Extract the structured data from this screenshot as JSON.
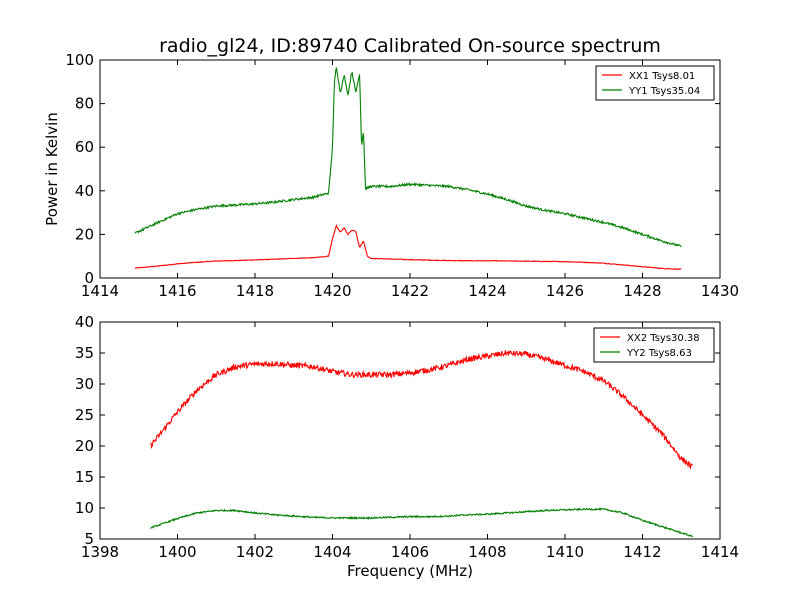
{
  "chart_data": [
    {
      "type": "line",
      "title": "radio_gl24, ID:89740 Calibrated On-source spectrum",
      "xlabel": "",
      "ylabel": "Power in Kelvin",
      "xlim": [
        1414,
        1430
      ],
      "ylim": [
        0,
        100
      ],
      "xticks": [
        "1414",
        "1416",
        "1418",
        "1420",
        "1422",
        "1424",
        "1426",
        "1428",
        "1430"
      ],
      "yticks": [
        "0",
        "20",
        "40",
        "60",
        "80",
        "100"
      ],
      "grid": false,
      "legend": "top-right",
      "series": [
        {
          "name": "XX1 Tsys8.01",
          "color": "#ff0000",
          "x": [
            1414.9,
            1415.5,
            1416.0,
            1416.5,
            1417.0,
            1417.5,
            1418.0,
            1418.5,
            1419.0,
            1419.5,
            1419.9,
            1420.0,
            1420.1,
            1420.2,
            1420.3,
            1420.4,
            1420.5,
            1420.6,
            1420.7,
            1420.8,
            1420.9,
            1421.0,
            1421.5,
            1422.0,
            1422.5,
            1423.0,
            1423.5,
            1424.0,
            1424.5,
            1425.0,
            1425.5,
            1426.0,
            1426.5,
            1427.0,
            1427.5,
            1428.0,
            1428.5,
            1429.0
          ],
          "values": [
            4.5,
            5.5,
            6.5,
            7.2,
            7.8,
            8.0,
            8.3,
            8.6,
            9.0,
            9.3,
            10.0,
            18.0,
            24.0,
            21.0,
            23.0,
            20.0,
            22.0,
            21.5,
            14.0,
            17.0,
            10.0,
            9.0,
            8.7,
            8.4,
            8.2,
            8.0,
            7.9,
            7.9,
            7.8,
            7.7,
            7.6,
            7.5,
            7.2,
            6.8,
            6.0,
            5.2,
            4.4,
            4.0
          ]
        },
        {
          "name": "YY1 Tsys35.04",
          "color": "#008000",
          "x": [
            1414.9,
            1415.5,
            1416.0,
            1416.5,
            1417.0,
            1417.5,
            1418.0,
            1418.5,
            1419.0,
            1419.5,
            1419.9,
            1420.0,
            1420.05,
            1420.1,
            1420.2,
            1420.3,
            1420.4,
            1420.5,
            1420.6,
            1420.7,
            1420.75,
            1420.8,
            1420.85,
            1421.0,
            1421.5,
            1422.0,
            1422.5,
            1423.0,
            1423.5,
            1424.0,
            1424.5,
            1425.0,
            1425.5,
            1426.0,
            1426.5,
            1427.0,
            1427.5,
            1428.0,
            1428.5,
            1429.0
          ],
          "values": [
            20.5,
            25.5,
            29.5,
            31.5,
            33.0,
            33.5,
            34.0,
            34.8,
            36.0,
            37.0,
            39.0,
            60.0,
            90.0,
            97.0,
            85.0,
            93.0,
            84.0,
            95.0,
            85.0,
            94.0,
            60.0,
            68.0,
            41.0,
            42.0,
            42.0,
            43.0,
            42.5,
            42.0,
            40.5,
            38.5,
            36.0,
            33.0,
            31.0,
            29.5,
            27.5,
            25.5,
            23.0,
            20.0,
            17.0,
            14.5
          ]
        }
      ]
    },
    {
      "type": "line",
      "title": "",
      "xlabel": "Frequency (MHz)",
      "ylabel": "",
      "xlim": [
        1398,
        1414
      ],
      "ylim": [
        5,
        40
      ],
      "xticks": [
        "1398",
        "1400",
        "1402",
        "1404",
        "1406",
        "1408",
        "1410",
        "1412",
        "1414"
      ],
      "yticks": [
        "5",
        "10",
        "15",
        "20",
        "25",
        "30",
        "35",
        "40"
      ],
      "grid": false,
      "legend": "top-right",
      "series": [
        {
          "name": "XX2 Tsys30.38",
          "color": "#ff0000",
          "x": [
            1399.3,
            1399.5,
            1400.0,
            1400.5,
            1401.0,
            1401.5,
            1402.0,
            1402.5,
            1403.0,
            1403.5,
            1404.0,
            1404.5,
            1405.0,
            1405.5,
            1406.0,
            1406.5,
            1407.0,
            1407.5,
            1408.0,
            1408.5,
            1409.0,
            1409.5,
            1410.0,
            1410.5,
            1411.0,
            1411.5,
            1412.0,
            1412.5,
            1413.0,
            1413.3
          ],
          "values": [
            20.0,
            21.5,
            25.5,
            29.0,
            31.5,
            32.8,
            33.2,
            33.3,
            33.0,
            32.8,
            32.0,
            31.5,
            31.5,
            31.5,
            31.8,
            32.3,
            33.0,
            34.0,
            34.5,
            35.0,
            34.8,
            34.0,
            33.0,
            32.0,
            30.5,
            28.0,
            25.0,
            22.0,
            18.0,
            16.5
          ]
        },
        {
          "name": "YY2 Tsys8.63",
          "color": "#008000",
          "x": [
            1399.3,
            1399.5,
            1400.0,
            1400.5,
            1401.0,
            1401.5,
            1402.0,
            1402.5,
            1403.0,
            1403.5,
            1404.0,
            1404.5,
            1405.0,
            1405.5,
            1406.0,
            1406.5,
            1407.0,
            1407.5,
            1408.0,
            1408.5,
            1409.0,
            1409.5,
            1410.0,
            1410.5,
            1411.0,
            1411.5,
            1412.0,
            1412.5,
            1413.0,
            1413.3
          ],
          "values": [
            6.8,
            7.2,
            8.3,
            9.2,
            9.6,
            9.6,
            9.2,
            8.9,
            8.7,
            8.5,
            8.4,
            8.4,
            8.4,
            8.5,
            8.6,
            8.6,
            8.7,
            8.9,
            9.0,
            9.2,
            9.4,
            9.6,
            9.7,
            9.8,
            9.8,
            9.2,
            8.0,
            7.0,
            6.0,
            5.4
          ]
        }
      ]
    }
  ]
}
